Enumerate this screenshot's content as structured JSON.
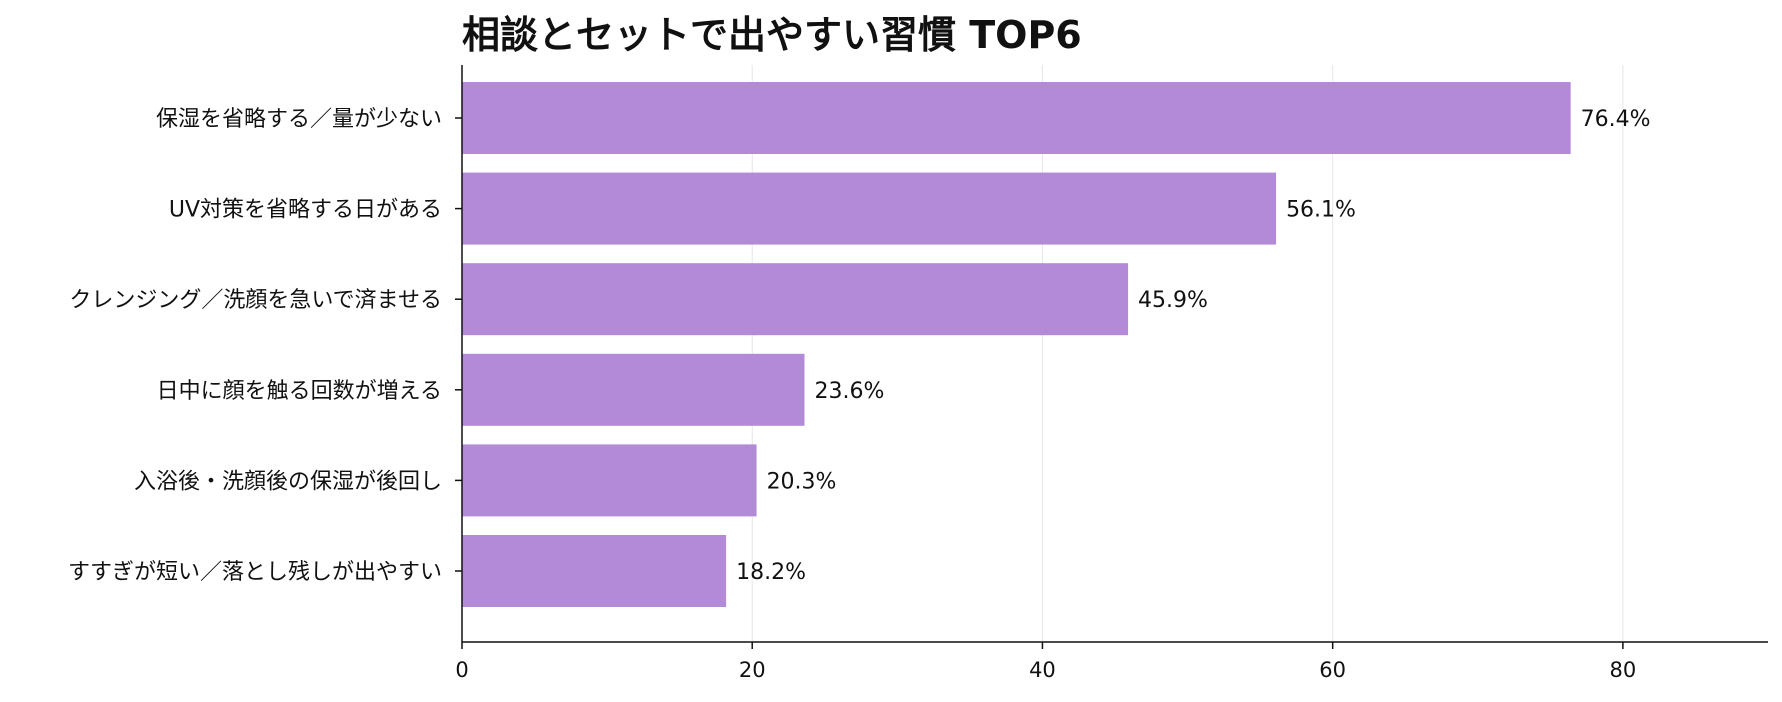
{
  "chart_data": {
    "type": "bar",
    "orientation": "horizontal",
    "title": "相談とセットで出やすい習慣 TOP6",
    "xlabel": "",
    "ylabel": "",
    "categories": [
      "保湿を省略する／量が少ない",
      "UV対策を省略する日がある",
      "クレンジング／洗顔を急いで済ませる",
      "日中に顔を触る回数が増える",
      "入浴後・洗顔後の保湿が後回し",
      "すすぎが短い／落とし残しが出やすい"
    ],
    "values": [
      76.4,
      56.1,
      45.9,
      23.6,
      20.3,
      18.2
    ],
    "value_labels": [
      "76.4%",
      "56.1%",
      "45.9%",
      "23.6%",
      "20.3%",
      "18.2%"
    ],
    "xlim": [
      0,
      90
    ],
    "xticks": [
      0,
      20,
      40,
      60,
      80
    ],
    "grid": "vertical",
    "legend": "none",
    "bar_color": "#b28ad8"
  }
}
